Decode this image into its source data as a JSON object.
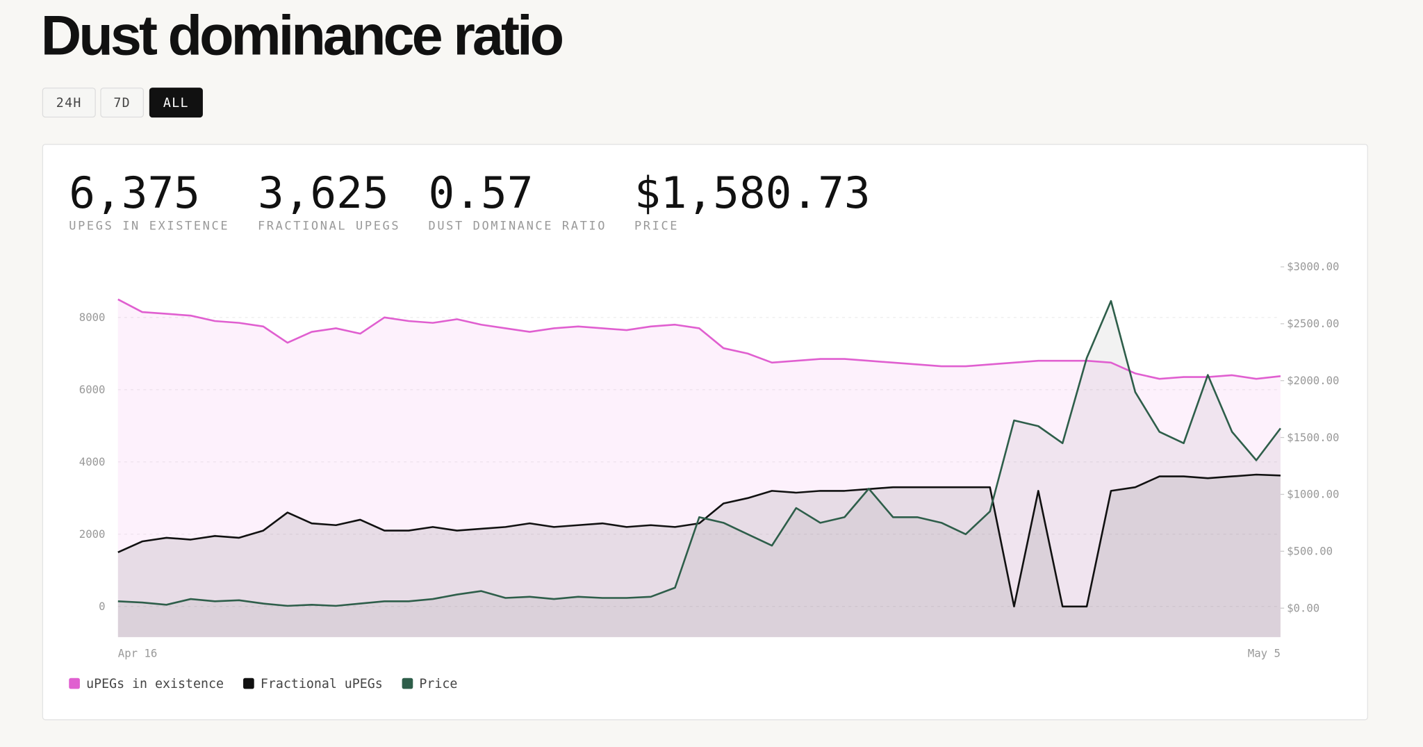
{
  "page": {
    "title": "Dust dominance ratio",
    "buttons": [
      "24H",
      "7D",
      "ALL"
    ],
    "stats": [
      {
        "value": "6,375",
        "label": "UPEGS IN EXISTENCE"
      },
      {
        "value": "3,625",
        "label": "FRACTIONAL UPEGS"
      },
      {
        "value": "0.57",
        "label": "DUST DOMINANCE RATIO"
      },
      {
        "value": "$1,580.73",
        "label": "PRICE"
      }
    ]
  },
  "chart_data": {
    "type": "line",
    "categories": [
      "Apr 16",
      null,
      null,
      null,
      null,
      null,
      null,
      null,
      null,
      null,
      null,
      null,
      null,
      null,
      null,
      null,
      null,
      null,
      null,
      null,
      null,
      null,
      null,
      null,
      null,
      null,
      null,
      null,
      null,
      null,
      null,
      null,
      null,
      null,
      null,
      null,
      null,
      null,
      null,
      null,
      null,
      null,
      null,
      null,
      null,
      null,
      null,
      null,
      "May 5"
    ],
    "series": [
      {
        "name": "uPEGs in existence",
        "color": "#e05fd0",
        "values": [
          8500,
          8150,
          8100,
          8050,
          7900,
          7850,
          7750,
          7300,
          7600,
          7700,
          7550,
          8000,
          7900,
          7850,
          7950,
          7800,
          7700,
          7600,
          7700,
          7750,
          7700,
          7650,
          7750,
          7800,
          7700,
          7150,
          7000,
          6750,
          6800,
          6850,
          6850,
          6800,
          6750,
          6700,
          6650,
          6650,
          6700,
          6750,
          6800,
          6800,
          6800,
          6750,
          6450,
          6300,
          6350,
          6350,
          6400,
          6300,
          6375
        ]
      },
      {
        "name": "Fractional uPEGs",
        "color": "#111111",
        "values": [
          1500,
          1800,
          1900,
          1850,
          1950,
          1900,
          2100,
          2600,
          2300,
          2250,
          2400,
          2100,
          2100,
          2200,
          2100,
          2150,
          2200,
          2300,
          2200,
          2250,
          2300,
          2200,
          2250,
          2200,
          2300,
          2850,
          3000,
          3200,
          3150,
          3200,
          3200,
          3250,
          3300,
          3300,
          3300,
          3300,
          3300,
          0,
          3200,
          0,
          0,
          3200,
          3300,
          3600,
          3600,
          3550,
          3600,
          3650,
          3625
        ]
      },
      {
        "name": "Price",
        "color": "#2e5e4a",
        "axis": "y2",
        "values": [
          60,
          50,
          30,
          80,
          60,
          70,
          40,
          20,
          30,
          20,
          40,
          60,
          60,
          80,
          120,
          150,
          90,
          100,
          80,
          100,
          90,
          90,
          100,
          180,
          800,
          750,
          650,
          550,
          880,
          750,
          800,
          1050,
          800,
          800,
          750,
          650,
          850,
          1650,
          1600,
          1450,
          2200,
          2700,
          1900,
          1550,
          1450,
          2050,
          1550,
          1300,
          1580.73
        ]
      }
    ],
    "ylim": [
      -850,
      9400
    ],
    "yticks": [
      0,
      2000,
      4000,
      6000,
      8000
    ],
    "y2lim": [
      -255,
      3000
    ],
    "y2ticks": [
      {
        "value": 0,
        "label": "$0.00"
      },
      {
        "value": 500,
        "label": "$500.00"
      },
      {
        "value": 1000,
        "label": "$1000.00"
      },
      {
        "value": 1500,
        "label": "$1500.00"
      },
      {
        "value": 2000,
        "label": "$2000.00"
      },
      {
        "value": 2500,
        "label": "$2500.00"
      },
      {
        "value": 3000,
        "label": "$3000.00"
      }
    ],
    "grid": true
  }
}
